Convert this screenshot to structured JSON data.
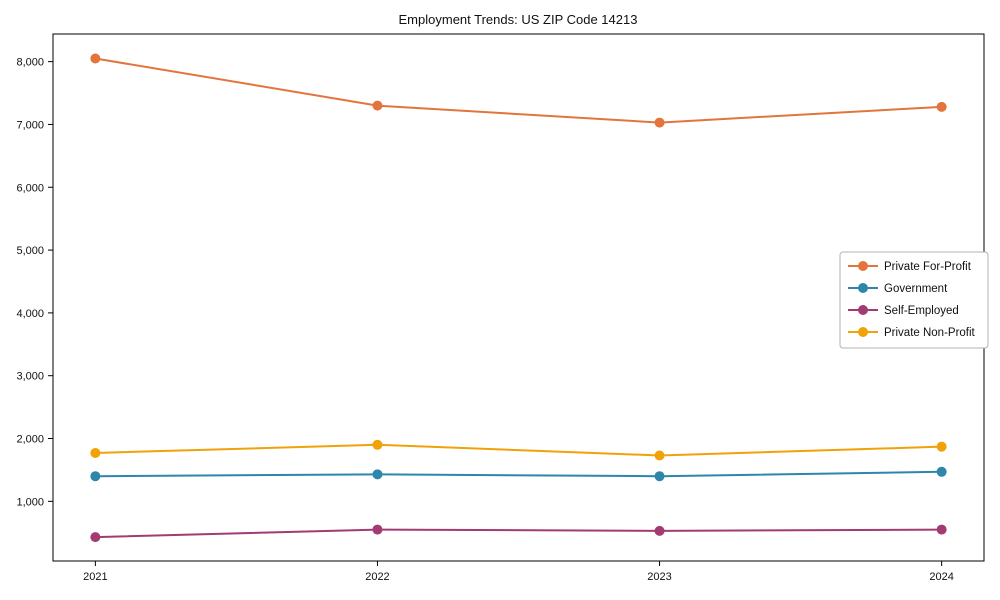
{
  "chart_data": {
    "type": "line",
    "title": "Employment Trends: US ZIP Code 14213",
    "xlabel": "",
    "ylabel": "",
    "x": [
      "2021",
      "2022",
      "2023",
      "2024"
    ],
    "y_ticks": [
      1000,
      2000,
      3000,
      4000,
      5000,
      6000,
      7000,
      8000
    ],
    "y_tick_labels": [
      "1,000",
      "2,000",
      "3,000",
      "4,000",
      "5,000",
      "6,000",
      "7,000",
      "8,000"
    ],
    "ylim": [
      50,
      8440
    ],
    "grid": false,
    "legend_position": "center right",
    "series": [
      {
        "name": "Private For-Profit",
        "color": "#E2743C",
        "values": [
          8050,
          7300,
          7030,
          7280
        ]
      },
      {
        "name": "Government",
        "color": "#2E86AB",
        "values": [
          1400,
          1430,
          1400,
          1470
        ]
      },
      {
        "name": "Self-Employed",
        "color": "#A23B72",
        "values": [
          430,
          550,
          530,
          550
        ]
      },
      {
        "name": "Private Non-Profit",
        "color": "#F1A208",
        "values": [
          1770,
          1900,
          1730,
          1870
        ]
      }
    ]
  }
}
